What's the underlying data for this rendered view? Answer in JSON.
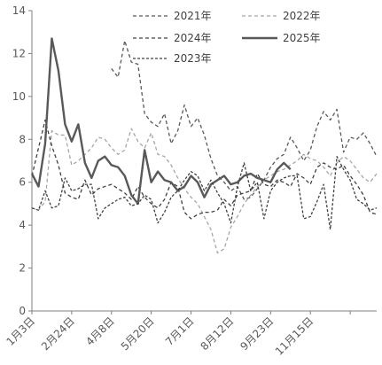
{
  "chart_data": {
    "type": "line",
    "title": "",
    "xlabel": "",
    "ylabel": "",
    "ylim": [
      0,
      14
    ],
    "yticks": [
      0,
      2,
      4,
      6,
      8,
      10,
      12,
      14
    ],
    "x_tick_labels": [
      "1月3日",
      "2月24日",
      "4月8日",
      "5月20日",
      "7月1日",
      "8月12日",
      "9月23日",
      "11月15日"
    ],
    "n_points": 53,
    "legend_position": "top",
    "series": [
      {
        "name": "2021年",
        "color": "#595959",
        "dash": "4,3",
        "width": 1.3,
        "values": [
          null,
          null,
          null,
          null,
          null,
          null,
          null,
          null,
          null,
          null,
          null,
          null,
          11.3,
          10.9,
          12.6,
          11.6,
          11.5,
          9.2,
          8.8,
          8.6,
          9.2,
          7.8,
          8.4,
          9.6,
          8.6,
          9.0,
          8.2,
          7.1,
          6.3,
          6.0,
          5.6,
          5.8,
          5.2,
          5.3,
          5.7,
          6.1,
          6.7,
          7.1,
          7.3,
          8.1,
          7.6,
          7.0,
          7.5,
          8.6,
          9.3,
          8.9,
          9.4,
          7.4,
          8.1,
          8.0,
          8.3,
          7.8,
          7.2
        ]
      },
      {
        "name": "2022年",
        "color": "#a6a6a6",
        "dash": "4,3",
        "width": 1.3,
        "values": [
          4.8,
          4.7,
          5.1,
          8.4,
          8.2,
          8.2,
          6.8,
          7.0,
          7.3,
          7.6,
          8.1,
          8.0,
          7.6,
          7.3,
          7.5,
          8.5,
          7.9,
          7.6,
          8.3,
          7.3,
          7.2,
          6.8,
          6.2,
          5.7,
          5.3,
          5.0,
          4.4,
          3.8,
          2.7,
          2.9,
          3.9,
          4.4,
          5.0,
          5.4,
          5.8,
          6.1,
          6.3,
          6.5,
          6.6,
          6.8,
          7.0,
          7.3,
          7.1,
          7.0,
          6.7,
          6.3,
          6.9,
          7.2,
          7.0,
          6.6,
          6.2,
          6.0,
          6.4
        ]
      },
      {
        "name": "2024年",
        "color": "#404040",
        "dash": "4,3",
        "width": 1.3,
        "values": [
          6.3,
          7.6,
          8.9,
          7.7,
          6.8,
          5.5,
          5.3,
          5.2,
          6.1,
          5.4,
          5.7,
          5.8,
          5.9,
          5.7,
          5.5,
          5.2,
          5.8,
          5.3,
          5.0,
          4.8,
          5.2,
          6.0,
          5.8,
          4.6,
          4.3,
          4.5,
          4.6,
          4.6,
          4.7,
          5.2,
          4.9,
          5.4,
          5.5,
          5.6,
          6.4,
          5.9,
          5.8,
          6.1,
          6.0,
          5.8,
          6.4,
          6.2,
          5.9,
          6.7,
          6.9,
          6.7,
          6.6,
          6.8,
          6.3,
          5.9,
          5.4,
          4.6,
          4.5
        ]
      },
      {
        "name": "2025年",
        "color": "#595959",
        "dash": "",
        "width": 2.4,
        "values": [
          6.4,
          5.8,
          7.8,
          12.7,
          11.2,
          8.7,
          7.9,
          8.7,
          6.9,
          6.2,
          7.0,
          7.2,
          6.8,
          6.7,
          6.3,
          5.4,
          5.0,
          7.5,
          6.0,
          6.5,
          6.1,
          6.0,
          5.6,
          5.8,
          6.3,
          6.0,
          5.3,
          5.9,
          6.1,
          6.3,
          5.9,
          6.0,
          6.3,
          6.4,
          6.2,
          6.1,
          6.0,
          6.6,
          6.9,
          6.6
        ]
      },
      {
        "name": "2023年",
        "color": "#404040",
        "dash": "3,2",
        "width": 1.3,
        "values": [
          4.8,
          4.7,
          5.6,
          4.8,
          4.9,
          6.2,
          5.6,
          5.7,
          5.9,
          5.9,
          4.3,
          4.8,
          5.0,
          5.2,
          5.3,
          4.9,
          5.0,
          5.4,
          5.2,
          4.1,
          4.6,
          5.3,
          5.6,
          6.1,
          6.5,
          6.3,
          5.6,
          6.1,
          5.5,
          5.0,
          4.1,
          5.8,
          6.9,
          5.6,
          6.0,
          4.3,
          5.6,
          6.0,
          6.2,
          6.3,
          6.3,
          4.3,
          4.4,
          5.1,
          5.9,
          3.8,
          7.2,
          6.6,
          6.1,
          5.2,
          5.0,
          4.7,
          4.8
        ]
      }
    ]
  }
}
